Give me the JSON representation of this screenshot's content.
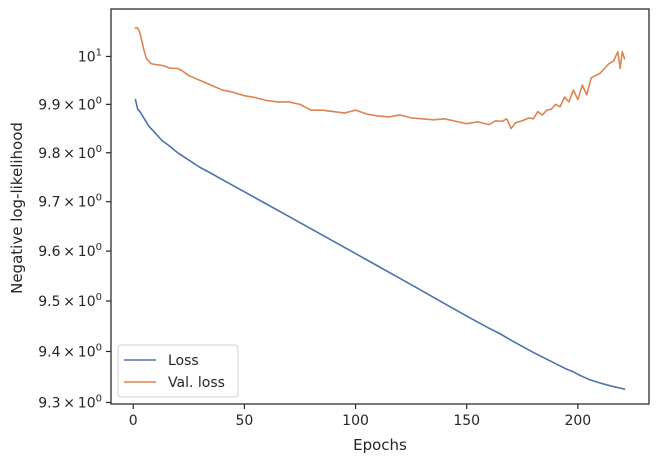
{
  "chart_data": {
    "type": "line",
    "title": "",
    "xlabel": "Epochs",
    "ylabel": "Negative log-likelihood",
    "xlim": [
      -10,
      232
    ],
    "ylim": [
      9.297,
      10.1
    ],
    "yscale": "log",
    "grid": false,
    "legend_position": "lower-left",
    "x_ticks": [
      {
        "value": 0,
        "label": "0"
      },
      {
        "value": 50,
        "label": "50"
      },
      {
        "value": 100,
        "label": "100"
      },
      {
        "value": 150,
        "label": "150"
      },
      {
        "value": 200,
        "label": "200"
      }
    ],
    "y_ticks": [
      {
        "value": 9.3,
        "mantissa": "9.3",
        "base": "10",
        "exp": "0"
      },
      {
        "value": 9.4,
        "mantissa": "9.4",
        "base": "10",
        "exp": "0"
      },
      {
        "value": 9.5,
        "mantissa": "9.5",
        "base": "10",
        "exp": "0"
      },
      {
        "value": 9.6,
        "mantissa": "9.6",
        "base": "10",
        "exp": "0"
      },
      {
        "value": 9.7,
        "mantissa": "9.7",
        "base": "10",
        "exp": "0"
      },
      {
        "value": 9.8,
        "mantissa": "9.8",
        "base": "10",
        "exp": "0"
      },
      {
        "value": 9.9,
        "mantissa": "9.9",
        "base": "10",
        "exp": "0"
      },
      {
        "value": 10.0,
        "mantissa": "",
        "base": "10",
        "exp": "1"
      }
    ],
    "series": [
      {
        "name": "Loss",
        "color": "#4c72b0",
        "x": [
          1,
          2,
          3,
          5,
          7,
          10,
          13,
          16,
          20,
          25,
          30,
          35,
          40,
          50,
          60,
          70,
          80,
          90,
          100,
          110,
          120,
          130,
          140,
          150,
          160,
          165,
          170,
          175,
          180,
          185,
          190,
          195,
          198,
          200,
          205,
          210,
          215,
          221
        ],
        "y": [
          9.91,
          9.89,
          9.885,
          9.87,
          9.855,
          9.84,
          9.825,
          9.815,
          9.8,
          9.785,
          9.77,
          9.758,
          9.745,
          9.72,
          9.695,
          9.67,
          9.645,
          9.62,
          9.595,
          9.57,
          9.545,
          9.52,
          9.495,
          9.47,
          9.446,
          9.435,
          9.422,
          9.41,
          9.398,
          9.387,
          9.376,
          9.365,
          9.36,
          9.355,
          9.345,
          9.338,
          9.332,
          9.326
        ]
      },
      {
        "name": "Val. loss",
        "color": "#dd8452",
        "x": [
          1,
          2,
          3,
          4,
          5,
          6,
          7,
          8,
          10,
          12,
          14,
          16,
          18,
          20,
          22,
          25,
          30,
          35,
          40,
          45,
          50,
          55,
          60,
          65,
          70,
          75,
          80,
          85,
          90,
          95,
          100,
          105,
          110,
          115,
          120,
          125,
          130,
          135,
          140,
          145,
          150,
          155,
          160,
          163,
          166,
          168,
          170,
          172,
          175,
          178,
          180,
          182,
          184,
          186,
          188,
          190,
          192,
          194,
          196,
          198,
          200,
          202,
          204,
          206,
          208,
          210,
          212,
          214,
          216,
          218,
          219,
          220,
          221
        ],
        "y": [
          10.06,
          10.06,
          10.05,
          10.03,
          10.01,
          9.995,
          9.99,
          9.985,
          9.983,
          9.982,
          9.98,
          9.976,
          9.975,
          9.975,
          9.97,
          9.96,
          9.95,
          9.94,
          9.93,
          9.925,
          9.918,
          9.914,
          9.908,
          9.905,
          9.905,
          9.9,
          9.888,
          9.888,
          9.885,
          9.882,
          9.888,
          9.88,
          9.876,
          9.874,
          9.878,
          9.872,
          9.87,
          9.868,
          9.87,
          9.865,
          9.86,
          9.864,
          9.858,
          9.866,
          9.865,
          9.87,
          9.85,
          9.862,
          9.866,
          9.872,
          9.87,
          9.885,
          9.878,
          9.888,
          9.89,
          9.9,
          9.895,
          9.915,
          9.905,
          9.93,
          9.91,
          9.94,
          9.92,
          9.955,
          9.96,
          9.965,
          9.975,
          9.985,
          9.99,
          10.01,
          9.975,
          10.01,
          9.995
        ]
      }
    ]
  }
}
